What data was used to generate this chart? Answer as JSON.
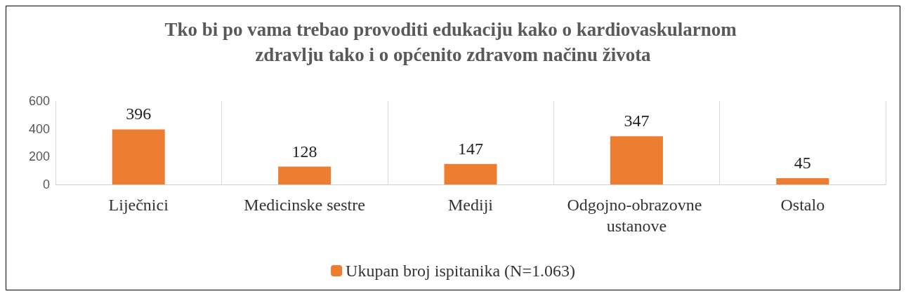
{
  "chart_data": {
    "type": "bar",
    "title": "Tko bi po vama trebao provoditi edukaciju kako o kardiovaskularnom zdravlju tako i o općenito zdravom načinu života",
    "categories": [
      "Liječnici",
      "Medicinske sestre",
      "Mediji",
      "Odgojno-obrazovne ustanove",
      "Ostalo"
    ],
    "series": [
      {
        "name": "Ukupan broj ispitanika (N=1.063)",
        "color": "#ed7d31",
        "values": [
          396,
          128,
          147,
          347,
          45
        ]
      }
    ],
    "ylim": [
      0,
      600
    ],
    "yticks": [
      0,
      200,
      400,
      600
    ],
    "grid": "x",
    "legend": "bottom",
    "data_labels": true
  }
}
